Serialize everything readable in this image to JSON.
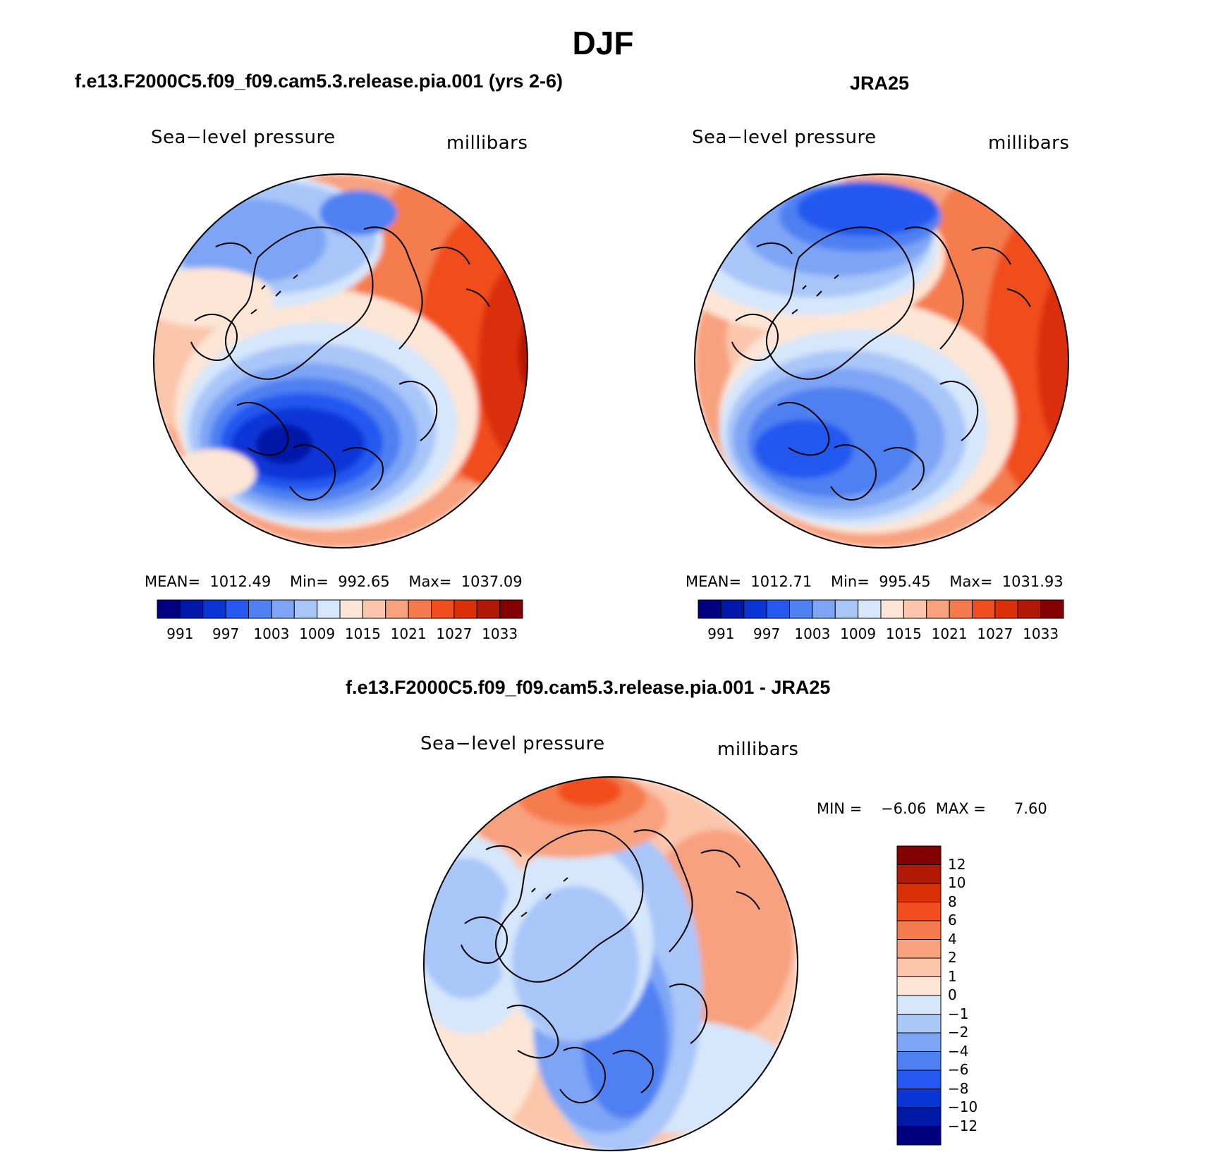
{
  "title": "DJF",
  "panels": {
    "model": {
      "case_title": "f.e13.F2000C5.f09_f09.cam5.3.release.pia.001 (yrs 2-6)",
      "field_label": "Sea−level pressure",
      "units_label": "millibars",
      "stats": {
        "mean_label": "MEAN=",
        "mean": "1012.49",
        "min_label": "Min=",
        "min": "992.65",
        "max_label": "Max=",
        "max": "1037.09"
      },
      "map_pattern": "model"
    },
    "obs": {
      "case_title": "JRA25",
      "field_label": "Sea−level pressure",
      "units_label": "millibars",
      "stats": {
        "mean_label": "MEAN=",
        "mean": "1012.71",
        "min_label": "Min=",
        "min": "995.45",
        "max_label": "Max=",
        "max": "1031.93"
      },
      "map_pattern": "obs"
    },
    "diff": {
      "case_title": "f.e13.F2000C5.f09_f09.cam5.3.release.pia.001 - JRA25",
      "field_label": "Sea−level pressure",
      "units_label": "millibars",
      "stats": {
        "min_label": "MIN =",
        "min": "−6.06",
        "max_label": "MAX =",
        "max": "7.60"
      },
      "map_pattern": "diff"
    }
  },
  "abs_colorbar": {
    "colors": [
      "#00007f",
      "#0018a8",
      "#0a35d6",
      "#2458f0",
      "#4f80f2",
      "#7ea5f5",
      "#a9c6f9",
      "#d6e7fb",
      "#fde6d6",
      "#fbc6ac",
      "#f8a17f",
      "#f57b4e",
      "#f14e1f",
      "#db2f08",
      "#b21806",
      "#830000"
    ],
    "tick_labels": [
      "991",
      "997",
      "1003",
      "1009",
      "1015",
      "1021",
      "1027",
      "1033"
    ]
  },
  "diff_colorbar": {
    "colors": [
      "#00007f",
      "#0018a8",
      "#0a35d6",
      "#2458f0",
      "#4f80f2",
      "#7ea5f5",
      "#a9c6f9",
      "#d6e7fb",
      "#fde6d6",
      "#fbc6ac",
      "#f8a17f",
      "#f57b4e",
      "#f14e1f",
      "#db2f08",
      "#b21806",
      "#830000"
    ],
    "tick_labels": [
      "12",
      "10",
      "8",
      "6",
      "4",
      "2",
      "1",
      "0",
      "−1",
      "−2",
      "−4",
      "−6",
      "−8",
      "−10",
      "−12"
    ]
  }
}
